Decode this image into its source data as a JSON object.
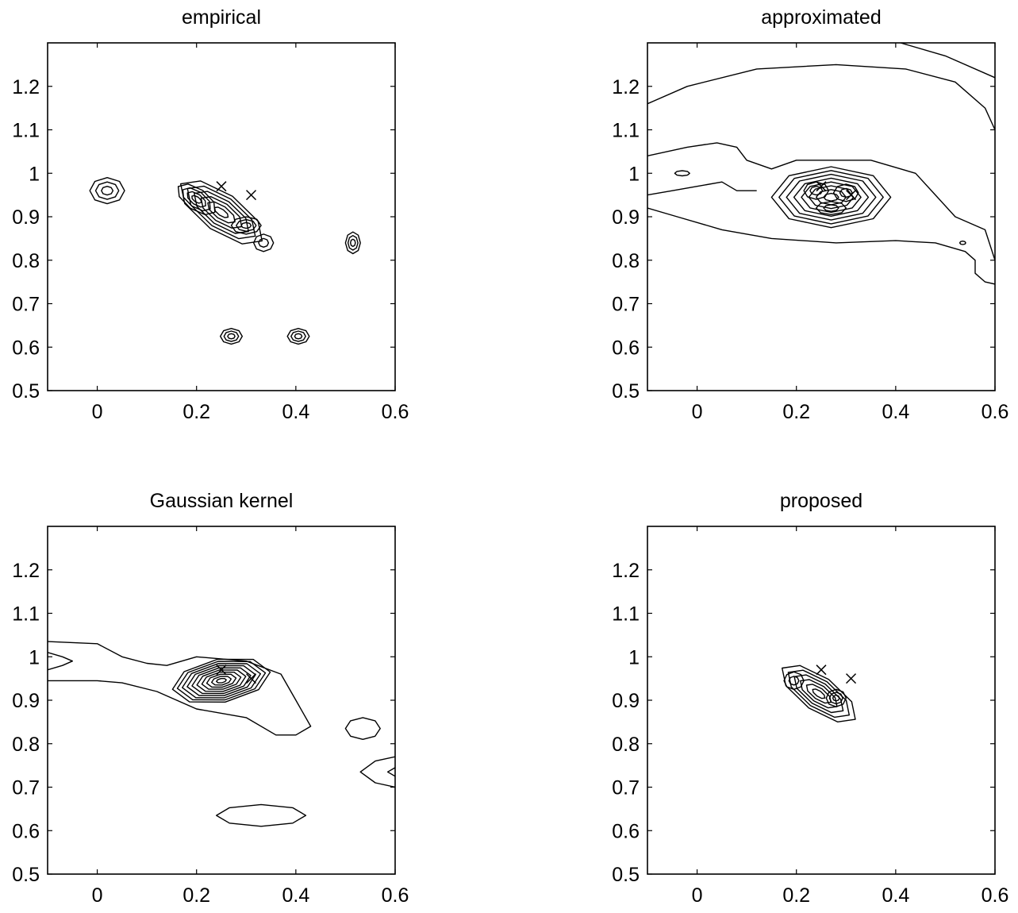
{
  "chart_data": [
    {
      "type": "contour",
      "title": "empirical",
      "xlabel": "",
      "ylabel": "",
      "xlim": [
        -0.1,
        0.6
      ],
      "ylim": [
        0.5,
        1.3
      ],
      "xticks": [
        "0",
        "0.2",
        "0.4",
        "0.6"
      ],
      "yticks": [
        "0.5",
        "0.6",
        "0.7",
        "0.8",
        "0.9",
        "1",
        "1.1",
        "1.2"
      ],
      "grid": false,
      "markers": [
        {
          "symbol": "x",
          "x": 0.25,
          "y": 0.97
        },
        {
          "symbol": "x",
          "x": 0.31,
          "y": 0.95
        }
      ],
      "contours": [
        {
          "cx": 0.02,
          "cy": 0.96,
          "rx": 0.035,
          "ry": 0.03,
          "levels": 3
        },
        {
          "cx": 0.25,
          "cy": 0.91,
          "rx": 0.1,
          "ry": 0.045,
          "rot": -35,
          "levels": 6
        },
        {
          "cx": 0.2,
          "cy": 0.94,
          "rx": 0.045,
          "ry": 0.025,
          "rot": -35,
          "levels": 4
        },
        {
          "cx": 0.3,
          "cy": 0.88,
          "rx": 0.03,
          "ry": 0.02,
          "levels": 3
        },
        {
          "cx": 0.335,
          "cy": 0.84,
          "rx": 0.02,
          "ry": 0.02,
          "levels": 2
        },
        {
          "cx": 0.515,
          "cy": 0.84,
          "rx": 0.015,
          "ry": 0.025,
          "levels": 3
        },
        {
          "cx": 0.27,
          "cy": 0.625,
          "rx": 0.022,
          "ry": 0.018,
          "levels": 3
        },
        {
          "cx": 0.405,
          "cy": 0.625,
          "rx": 0.022,
          "ry": 0.018,
          "levels": 3
        }
      ]
    },
    {
      "type": "contour",
      "title": "approximated",
      "xlabel": "",
      "ylabel": "",
      "xlim": [
        -0.1,
        0.6
      ],
      "ylim": [
        0.5,
        1.3
      ],
      "xticks": [
        "0",
        "0.2",
        "0.4",
        "0.6"
      ],
      "yticks": [
        "0.5",
        "0.6",
        "0.7",
        "0.8",
        "0.9",
        "1",
        "1.1",
        "1.2"
      ],
      "grid": false,
      "markers": [
        {
          "symbol": "x",
          "x": 0.25,
          "y": 0.97
        },
        {
          "symbol": "x",
          "x": 0.31,
          "y": 0.95
        }
      ],
      "contours": [
        {
          "cx": 0.27,
          "cy": 0.945,
          "rx": 0.12,
          "ry": 0.07,
          "levels": 8
        },
        {
          "cx": 0.24,
          "cy": 0.96,
          "rx": 0.025,
          "ry": 0.02,
          "levels": 2
        },
        {
          "cx": 0.3,
          "cy": 0.955,
          "rx": 0.025,
          "ry": 0.02,
          "levels": 2
        },
        {
          "cx": 0.27,
          "cy": 0.92,
          "rx": 0.03,
          "ry": 0.015,
          "levels": 2
        },
        {
          "cx": -0.03,
          "cy": 1.0,
          "rx": 0.015,
          "ry": 0.006,
          "levels": 1
        },
        {
          "cx": 0.535,
          "cy": 0.84,
          "rx": 0.006,
          "ry": 0.004,
          "levels": 1
        }
      ],
      "open_contours": [
        [
          [
            -0.1,
            1.16
          ],
          [
            -0.02,
            1.2
          ],
          [
            0.12,
            1.24
          ],
          [
            0.28,
            1.25
          ],
          [
            0.42,
            1.24
          ],
          [
            0.52,
            1.21
          ],
          [
            0.58,
            1.15
          ],
          [
            0.6,
            1.1
          ]
        ],
        [
          [
            0.41,
            1.3
          ],
          [
            0.5,
            1.27
          ],
          [
            0.6,
            1.22
          ]
        ],
        [
          [
            -0.1,
            1.04
          ],
          [
            -0.02,
            1.06
          ],
          [
            0.04,
            1.07
          ],
          [
            0.08,
            1.06
          ],
          [
            0.1,
            1.03
          ],
          [
            0.15,
            1.01
          ],
          [
            0.2,
            1.03
          ],
          [
            0.35,
            1.03
          ],
          [
            0.44,
            1.0
          ],
          [
            0.48,
            0.95
          ],
          [
            0.52,
            0.9
          ],
          [
            0.58,
            0.87
          ],
          [
            0.6,
            0.8
          ]
        ],
        [
          [
            -0.1,
            0.95
          ],
          [
            -0.05,
            0.96
          ],
          [
            0.0,
            0.97
          ],
          [
            0.05,
            0.98
          ],
          [
            0.08,
            0.96
          ],
          [
            0.12,
            0.96
          ]
        ],
        [
          [
            -0.1,
            0.92
          ],
          [
            -0.04,
            0.9
          ],
          [
            0.05,
            0.87
          ],
          [
            0.15,
            0.85
          ],
          [
            0.28,
            0.84
          ],
          [
            0.4,
            0.845
          ],
          [
            0.48,
            0.84
          ],
          [
            0.54,
            0.82
          ],
          [
            0.56,
            0.8
          ],
          [
            0.56,
            0.77
          ],
          [
            0.58,
            0.75
          ],
          [
            0.6,
            0.745
          ]
        ]
      ]
    },
    {
      "type": "contour",
      "title": "Gaussian kernel",
      "xlabel": "",
      "ylabel": "",
      "xlim": [
        -0.1,
        0.6
      ],
      "ylim": [
        0.5,
        1.3
      ],
      "xticks": [
        "0",
        "0.2",
        "0.4",
        "0.6"
      ],
      "yticks": [
        "0.5",
        "0.6",
        "0.7",
        "0.8",
        "0.9",
        "1",
        "1.1",
        "1.2"
      ],
      "grid": false,
      "markers": [
        {
          "symbol": "x",
          "x": 0.25,
          "y": 0.97
        },
        {
          "symbol": "x",
          "x": 0.31,
          "y": 0.95
        }
      ],
      "contours": [
        {
          "cx": 0.25,
          "cy": 0.945,
          "rx": 0.1,
          "ry": 0.05,
          "rot": 10,
          "levels": 10
        },
        {
          "cx": 0.535,
          "cy": 0.835,
          "rx": 0.035,
          "ry": 0.025,
          "levels": 1
        },
        {
          "cx": 0.33,
          "cy": 0.635,
          "rx": 0.09,
          "ry": 0.025,
          "levels": 1
        }
      ],
      "open_contours": [
        [
          [
            -0.1,
            1.035
          ],
          [
            0.0,
            1.03
          ],
          [
            0.05,
            1.0
          ],
          [
            0.1,
            0.985
          ],
          [
            0.14,
            0.98
          ],
          [
            0.2,
            1.0
          ],
          [
            0.3,
            0.99
          ],
          [
            0.37,
            0.96
          ],
          [
            0.4,
            0.9
          ],
          [
            0.43,
            0.84
          ],
          [
            0.4,
            0.82
          ],
          [
            0.36,
            0.82
          ],
          [
            0.3,
            0.86
          ],
          [
            0.2,
            0.88
          ],
          [
            0.12,
            0.92
          ],
          [
            0.05,
            0.94
          ],
          [
            0.0,
            0.945
          ],
          [
            -0.1,
            0.945
          ]
        ],
        [
          [
            -0.1,
            1.01
          ],
          [
            -0.07,
            1.0
          ],
          [
            -0.05,
            0.99
          ],
          [
            -0.07,
            0.98
          ],
          [
            -0.1,
            0.97
          ]
        ],
        [
          [
            0.6,
            0.77
          ],
          [
            0.56,
            0.76
          ],
          [
            0.53,
            0.735
          ],
          [
            0.56,
            0.71
          ],
          [
            0.6,
            0.7
          ]
        ],
        [
          [
            0.6,
            0.745
          ],
          [
            0.585,
            0.735
          ],
          [
            0.6,
            0.725
          ]
        ]
      ]
    },
    {
      "type": "contour",
      "title": "proposed",
      "xlabel": "",
      "ylabel": "",
      "xlim": [
        -0.1,
        0.6
      ],
      "ylim": [
        0.5,
        1.3
      ],
      "xticks": [
        "0",
        "0.2",
        "0.4",
        "0.6"
      ],
      "yticks": [
        "0.5",
        "0.6",
        "0.7",
        "0.8",
        "0.9",
        "1",
        "1.1",
        "1.2"
      ],
      "grid": false,
      "markers": [
        {
          "symbol": "x",
          "x": 0.25,
          "y": 0.97
        },
        {
          "symbol": "x",
          "x": 0.31,
          "y": 0.95
        }
      ],
      "contours": [
        {
          "cx": 0.245,
          "cy": 0.915,
          "rx": 0.09,
          "ry": 0.04,
          "rot": -35,
          "levels": 6
        },
        {
          "cx": 0.195,
          "cy": 0.945,
          "rx": 0.02,
          "ry": 0.02,
          "levels": 2
        },
        {
          "cx": 0.28,
          "cy": 0.905,
          "rx": 0.02,
          "ry": 0.02,
          "levels": 3
        }
      ]
    }
  ]
}
